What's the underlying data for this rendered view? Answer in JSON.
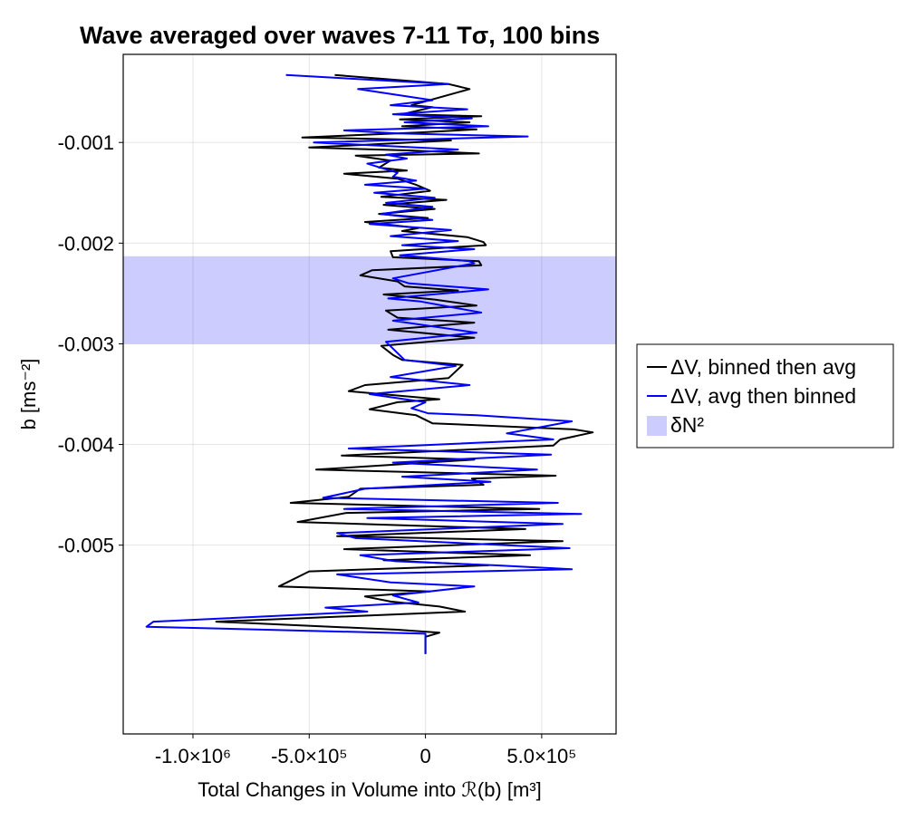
{
  "chart_data": {
    "type": "line",
    "title": "Wave averaged over waves 7-11 Tσ, 100 bins",
    "xlabel": "Total Changes in Volume into ℛ(b) [m³]",
    "ylabel": "b [ms⁻²]",
    "xlim": [
      -1300000,
      820000
    ],
    "ylim": [
      -0.006875,
      -0.000125
    ],
    "x_ticks": [
      {
        "value": -1000000,
        "label": "-1.0×10⁶"
      },
      {
        "value": -500000,
        "label": "-5.0×10⁵"
      },
      {
        "value": 0,
        "label": "0"
      },
      {
        "value": 500000,
        "label": "5.0×10⁵"
      }
    ],
    "y_ticks": [
      {
        "value": -0.001,
        "label": "-0.001"
      },
      {
        "value": -0.002,
        "label": "-0.002"
      },
      {
        "value": -0.003,
        "label": "-0.003"
      },
      {
        "value": -0.004,
        "label": "-0.004"
      },
      {
        "value": -0.005,
        "label": "-0.005"
      }
    ],
    "grid": true,
    "legend_position": "right",
    "band": {
      "name": "δN²",
      "y_range": [
        -0.003,
        -0.00213
      ],
      "color": "#ccccff"
    },
    "series": [
      {
        "name": "ΔV, binned then avg",
        "color": "#000000",
        "points": [
          [
            -390000,
            -0.00033
          ],
          [
            100000,
            -0.00042
          ],
          [
            190000,
            -0.00047
          ],
          [
            -60000,
            -0.00063
          ],
          [
            30000,
            -0.00065
          ],
          [
            -100000,
            -0.00072
          ],
          [
            240000,
            -0.00074
          ],
          [
            -110000,
            -0.00077
          ],
          [
            190000,
            -0.0008
          ],
          [
            -100000,
            -0.00084
          ],
          [
            220000,
            -0.00087
          ],
          [
            -20000,
            -0.0009
          ],
          [
            -530000,
            -0.00095
          ],
          [
            110000,
            -0.00098
          ],
          [
            -500000,
            -0.00105
          ],
          [
            -60000,
            -0.00108
          ],
          [
            230000,
            -0.00111
          ],
          [
            -300000,
            -0.00113
          ],
          [
            -150000,
            -0.00118
          ],
          [
            -200000,
            -0.00125
          ],
          [
            -80000,
            -0.00128
          ],
          [
            -350000,
            -0.00131
          ],
          [
            -120000,
            -0.00136
          ],
          [
            -40000,
            -0.00142
          ],
          [
            20000,
            -0.00148
          ],
          [
            -190000,
            -0.00154
          ],
          [
            90000,
            -0.00157
          ],
          [
            -180000,
            -0.00162
          ],
          [
            40000,
            -0.00166
          ],
          [
            -200000,
            -0.00171
          ],
          [
            10000,
            -0.00175
          ],
          [
            -260000,
            -0.00179
          ],
          [
            -30000,
            -0.00185
          ],
          [
            -100000,
            -0.00188
          ],
          [
            180000,
            -0.00194
          ],
          [
            250000,
            -0.00199
          ],
          [
            260000,
            -0.00202
          ],
          [
            -150000,
            -0.00208
          ],
          [
            -140000,
            -0.00214
          ],
          [
            230000,
            -0.00218
          ],
          [
            240000,
            -0.00222
          ],
          [
            -230000,
            -0.00227
          ],
          [
            -280000,
            -0.00232
          ],
          [
            -120000,
            -0.00238
          ],
          [
            -90000,
            -0.00243
          ],
          [
            140000,
            -0.00247
          ],
          [
            -180000,
            -0.00251
          ],
          [
            40000,
            -0.00256
          ],
          [
            220000,
            -0.00262
          ],
          [
            -170000,
            -0.00267
          ],
          [
            -120000,
            -0.00274
          ],
          [
            210000,
            -0.00279
          ],
          [
            -160000,
            -0.00286
          ],
          [
            210000,
            -0.00294
          ],
          [
            -190000,
            -0.00302
          ],
          [
            -140000,
            -0.00311
          ],
          [
            -100000,
            -0.00316
          ],
          [
            160000,
            -0.00321
          ],
          [
            100000,
            -0.00334
          ],
          [
            -260000,
            -0.00341
          ],
          [
            -330000,
            -0.00347
          ],
          [
            60000,
            -0.00355
          ],
          [
            -120000,
            -0.00358
          ],
          [
            -240000,
            -0.00365
          ],
          [
            -40000,
            -0.00371
          ],
          [
            30000,
            -0.00379
          ],
          [
            640000,
            -0.00385
          ],
          [
            720000,
            -0.00388
          ],
          [
            580000,
            -0.00395
          ],
          [
            550000,
            -0.00401
          ],
          [
            -360000,
            -0.00411
          ],
          [
            210000,
            -0.00415
          ],
          [
            -470000,
            -0.00425
          ],
          [
            560000,
            -0.00431
          ],
          [
            200000,
            -0.00434
          ],
          [
            250000,
            -0.0044
          ],
          [
            -280000,
            -0.00444
          ],
          [
            -330000,
            -0.00452
          ],
          [
            -580000,
            -0.00458
          ],
          [
            490000,
            -0.00464
          ],
          [
            -340000,
            -0.00468
          ],
          [
            -550000,
            -0.00477
          ],
          [
            430000,
            -0.00484
          ],
          [
            -380000,
            -0.00491
          ],
          [
            590000,
            -0.00496
          ],
          [
            -350000,
            -0.00504
          ],
          [
            450000,
            -0.0051
          ],
          [
            -180000,
            -0.00515
          ],
          [
            270000,
            -0.0052
          ],
          [
            -500000,
            -0.00526
          ],
          [
            -630000,
            -0.00541
          ],
          [
            20000,
            -0.00546
          ],
          [
            -260000,
            -0.00551
          ],
          [
            -150000,
            -0.00556
          ],
          [
            60000,
            -0.00561
          ],
          [
            170000,
            -0.00566
          ],
          [
            -900000,
            -0.00576
          ],
          [
            -120000,
            -0.00584
          ],
          [
            60000,
            -0.00587
          ],
          [
            0,
            -0.00591
          ],
          [
            0,
            -0.00608
          ]
        ]
      },
      {
        "name": "ΔV, avg then binned",
        "color": "#0000ff",
        "points": [
          [
            -600000,
            -0.00033
          ],
          [
            100000,
            -0.00042
          ],
          [
            -290000,
            -0.00047
          ],
          [
            30000,
            -0.00058
          ],
          [
            -150000,
            -0.00063
          ],
          [
            180000,
            -0.00067
          ],
          [
            -140000,
            -0.00072
          ],
          [
            200000,
            -0.00076
          ],
          [
            -90000,
            -0.0008
          ],
          [
            270000,
            -0.00084
          ],
          [
            -350000,
            -0.00088
          ],
          [
            -120000,
            -0.00091
          ],
          [
            440000,
            -0.00094
          ],
          [
            -480000,
            -0.001
          ],
          [
            140000,
            -0.00107
          ],
          [
            -170000,
            -0.00112
          ],
          [
            -80000,
            -0.00116
          ],
          [
            -250000,
            -0.00121
          ],
          [
            -180000,
            -0.00126
          ],
          [
            -120000,
            -0.0013
          ],
          [
            -140000,
            -0.00134
          ],
          [
            -40000,
            -0.00138
          ],
          [
            -260000,
            -0.00142
          ],
          [
            0,
            -0.00146
          ],
          [
            -220000,
            -0.0015
          ],
          [
            40000,
            -0.00155
          ],
          [
            -170000,
            -0.0016
          ],
          [
            30000,
            -0.00164
          ],
          [
            -190000,
            -0.00171
          ],
          [
            30000,
            -0.00177
          ],
          [
            -240000,
            -0.00181
          ],
          [
            110000,
            -0.00187
          ],
          [
            -150000,
            -0.00193
          ],
          [
            140000,
            -0.00198
          ],
          [
            -100000,
            -0.00202
          ],
          [
            210000,
            -0.00206
          ],
          [
            -110000,
            -0.00212
          ],
          [
            190000,
            -0.00218
          ],
          [
            210000,
            -0.0022
          ],
          [
            -140000,
            -0.00235
          ],
          [
            -70000,
            -0.0024
          ],
          [
            270000,
            -0.00246
          ],
          [
            -160000,
            -0.00255
          ],
          [
            -20000,
            -0.00258
          ],
          [
            240000,
            -0.00269
          ],
          [
            -140000,
            -0.00277
          ],
          [
            220000,
            -0.00289
          ],
          [
            -170000,
            -0.00298
          ],
          [
            -90000,
            -0.00316
          ],
          [
            130000,
            -0.00322
          ],
          [
            -150000,
            -0.00333
          ],
          [
            190000,
            -0.00341
          ],
          [
            -240000,
            -0.0035
          ],
          [
            0,
            -0.00358
          ],
          [
            -60000,
            -0.00364
          ],
          [
            10000,
            -0.00369
          ],
          [
            220000,
            -0.00371
          ],
          [
            630000,
            -0.00377
          ],
          [
            350000,
            -0.00389
          ],
          [
            550000,
            -0.00395
          ],
          [
            -330000,
            -0.00404
          ],
          [
            540000,
            -0.0041
          ],
          [
            -140000,
            -0.00418
          ],
          [
            480000,
            -0.00425
          ],
          [
            -100000,
            -0.00432
          ],
          [
            280000,
            -0.00437
          ],
          [
            -260000,
            -0.00444
          ],
          [
            -440000,
            -0.00453
          ],
          [
            570000,
            -0.00458
          ],
          [
            -350000,
            -0.00464
          ],
          [
            670000,
            -0.00469
          ],
          [
            -250000,
            -0.00473
          ],
          [
            590000,
            -0.00479
          ],
          [
            -380000,
            -0.00488
          ],
          [
            -300000,
            -0.00493
          ],
          [
            620000,
            -0.00503
          ],
          [
            -280000,
            -0.0051
          ],
          [
            -130000,
            -0.00516
          ],
          [
            300000,
            -0.0052
          ],
          [
            630000,
            -0.00524
          ],
          [
            -380000,
            -0.00529
          ],
          [
            -150000,
            -0.00537
          ],
          [
            210000,
            -0.00541
          ],
          [
            -140000,
            -0.0055
          ],
          [
            -30000,
            -0.00557
          ],
          [
            -430000,
            -0.00562
          ],
          [
            -250000,
            -0.00566
          ],
          [
            -1170000,
            -0.00576
          ],
          [
            -1200000,
            -0.00581
          ],
          [
            0,
            -0.00588
          ],
          [
            0,
            -0.00608
          ]
        ]
      }
    ]
  }
}
